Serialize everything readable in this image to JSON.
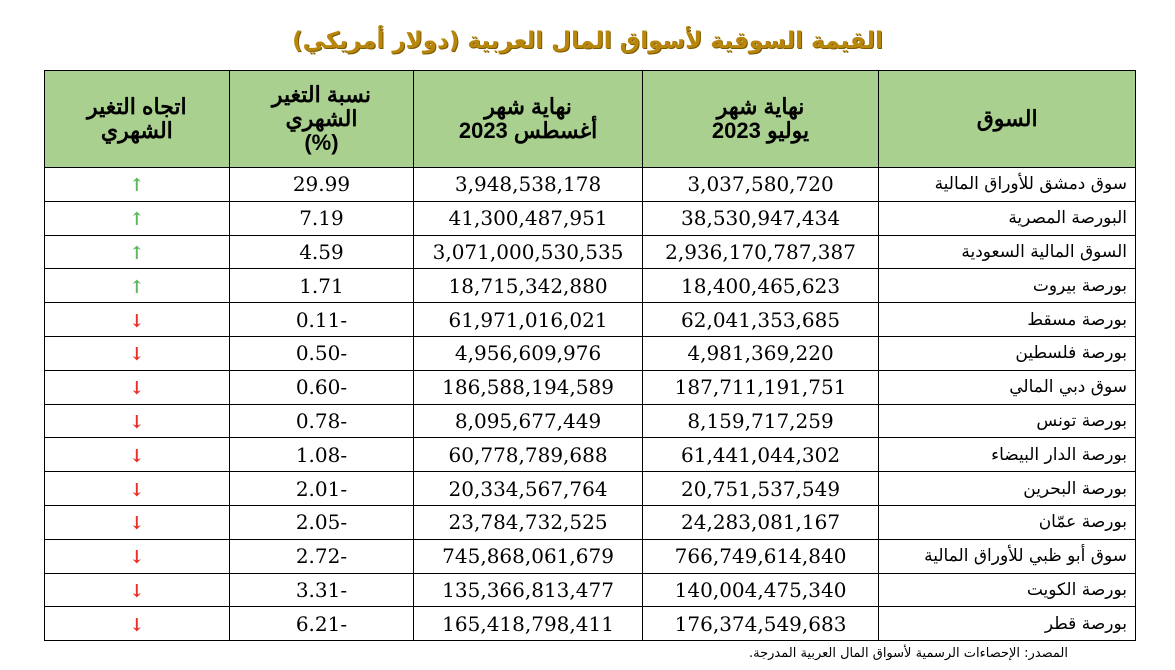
{
  "title": "القيمة السوقية لأسواق المال العربية (دولار أمريكي)",
  "headers": {
    "market": "السوق",
    "july": "نهاية شهر\nيوليو 2023",
    "august": "نهاية شهر\nأغسطس 2023",
    "pct": "نسبة التغير\nالشهري\n(%)",
    "direction": "اتجاه التغير\nالشهري"
  },
  "colors": {
    "header_bg": "#a9d08e",
    "title": "#b8860b",
    "up": "#5cb85c",
    "down": "#e8302a"
  },
  "rows": [
    {
      "market": "سوق دمشق للأوراق المالية",
      "july": "3,037,580,720",
      "august": "3,948,538,178",
      "pct": "29.99",
      "dir": "up"
    },
    {
      "market": "البورصة المصرية",
      "july": "38,530,947,434",
      "august": "41,300,487,951",
      "pct": "7.19",
      "dir": "up"
    },
    {
      "market": "السوق المالية السعودية",
      "july": "2,936,170,787,387",
      "august": "3,071,000,530,535",
      "pct": "4.59",
      "dir": "up"
    },
    {
      "market": "بورصة بيروت",
      "july": "18,400,465,623",
      "august": "18,715,342,880",
      "pct": "1.71",
      "dir": "up"
    },
    {
      "market": "بورصة مسقط",
      "july": "62,041,353,685",
      "august": "61,971,016,021",
      "pct": "-0.11",
      "dir": "down"
    },
    {
      "market": "بورصة فلسطين",
      "july": "4,981,369,220",
      "august": "4,956,609,976",
      "pct": "-0.50",
      "dir": "down"
    },
    {
      "market": "سوق دبي المالي",
      "july": "187,711,191,751",
      "august": "186,588,194,589",
      "pct": "-0.60",
      "dir": "down"
    },
    {
      "market": "بورصة تونس",
      "july": "8,159,717,259",
      "august": "8,095,677,449",
      "pct": "-0.78",
      "dir": "down"
    },
    {
      "market": "بورصة الدار البيضاء",
      "july": "61,441,044,302",
      "august": "60,778,789,688",
      "pct": "-1.08",
      "dir": "down"
    },
    {
      "market": "بورصة البحرين",
      "july": "20,751,537,549",
      "august": "20,334,567,764",
      "pct": "-2.01",
      "dir": "down"
    },
    {
      "market": "بورصة عمّان",
      "july": "24,283,081,167",
      "august": "23,784,732,525",
      "pct": "-2.05",
      "dir": "down"
    },
    {
      "market": "سوق أبو ظبي للأوراق المالية",
      "july": "766,749,614,840",
      "august": "745,868,061,679",
      "pct": "-2.72",
      "dir": "down"
    },
    {
      "market": "بورصة الكويت",
      "july": "140,004,475,340",
      "august": "135,366,813,477",
      "pct": "-3.31",
      "dir": "down"
    },
    {
      "market": "بورصة قطر",
      "july": "176,374,549,683",
      "august": "165,418,798,411",
      "pct": "-6.21",
      "dir": "down"
    }
  ],
  "source": "المصدر: الإحصاءات الرسمية لأسواق المال العربية المدرجة."
}
